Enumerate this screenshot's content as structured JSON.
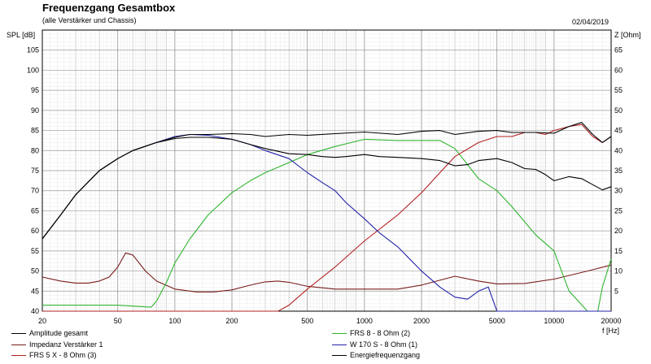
{
  "header": {
    "title": "Frequenzgang Gesamtbox",
    "subtitle": "(alle Verstärker und Chassis)",
    "date": "02/04/2019"
  },
  "chart_data": {
    "type": "line",
    "title": "Frequenzgang Gesamtbox",
    "subtitle": "(alle Verstärker und Chassis)",
    "xlabel": "f [Hz]",
    "ylabel": "SPL [dB]",
    "ylabel_right": "Z [Ohm]",
    "xscale": "log",
    "xlim": [
      20,
      20000
    ],
    "ylim": [
      40,
      110
    ],
    "ylim_right": [
      0,
      70
    ],
    "grid": true,
    "legend_position": "bottom",
    "x_ticks": [
      "20",
      "50",
      "100",
      "200",
      "500",
      "1000",
      "2000",
      "5000",
      "10000",
      "20000"
    ],
    "x_tick_values": [
      20,
      50,
      100,
      200,
      500,
      1000,
      2000,
      5000,
      10000,
      20000
    ],
    "y_ticks": [
      "40",
      "45",
      "50",
      "55",
      "60",
      "65",
      "70",
      "75",
      "80",
      "85",
      "90",
      "95",
      "100",
      "105"
    ],
    "y_tick_values": [
      40,
      45,
      50,
      55,
      60,
      65,
      70,
      75,
      80,
      85,
      90,
      95,
      100,
      105
    ],
    "y_ticks_right": [
      "5",
      "10",
      "15",
      "20",
      "25",
      "30",
      "35",
      "40",
      "45",
      "50",
      "55",
      "60",
      "65"
    ],
    "y_tick_values_right": [
      5,
      10,
      15,
      20,
      25,
      30,
      35,
      40,
      45,
      50,
      55,
      60,
      65
    ],
    "series": [
      {
        "name": "Amplitude gesamt",
        "color": "#000000",
        "axis": "left",
        "x": [
          20,
          25,
          30,
          40,
          50,
          60,
          80,
          100,
          120,
          150,
          200,
          250,
          300,
          400,
          500,
          700,
          1000,
          1500,
          2000,
          2500,
          3000,
          4000,
          5000,
          6000,
          8000,
          10000,
          12000,
          14000,
          16000,
          18000,
          20000
        ],
        "y": [
          58,
          64,
          69,
          75,
          78,
          80,
          82,
          83.3,
          84,
          84,
          84.2,
          84,
          83.5,
          84,
          83.8,
          84.2,
          84.6,
          84,
          84.8,
          85,
          84,
          84.8,
          85,
          84.5,
          84.5,
          84.3,
          86,
          87,
          84,
          82,
          83.5
        ]
      },
      {
        "name": "Impedanz Verstärker 1",
        "color": "#7a1c1c",
        "axis": "right",
        "x": [
          20,
          25,
          30,
          35,
          40,
          45,
          50,
          55,
          60,
          70,
          80,
          100,
          130,
          160,
          200,
          250,
          300,
          350,
          400,
          500,
          700,
          1000,
          1500,
          2000,
          2500,
          3000,
          4000,
          5000,
          7000,
          10000,
          15000,
          20000
        ],
        "y": [
          8.5,
          7.5,
          7,
          7,
          7.5,
          8.5,
          11,
          14.5,
          14,
          10,
          7.5,
          5.5,
          4.8,
          4.8,
          5.3,
          6.5,
          7.3,
          7.5,
          7.2,
          6.2,
          5.5,
          5.5,
          5.5,
          6.5,
          7.7,
          8.7,
          7.5,
          6.8,
          6.9,
          8,
          10,
          11.5
        ]
      },
      {
        "name": "FRS 8 - 8 Ohm (2)",
        "color": "#2fb52f",
        "axis": "left",
        "x": [
          20,
          50,
          75,
          80,
          90,
          100,
          120,
          150,
          200,
          250,
          300,
          400,
          500,
          700,
          1000,
          1500,
          2000,
          2500,
          3000,
          4000,
          5000,
          6000,
          8000,
          10000,
          12000,
          15000,
          17000,
          18000,
          20000
        ],
        "y": [
          41.5,
          41.5,
          41,
          42.5,
          47,
          52,
          58,
          64,
          69.5,
          72.5,
          74.5,
          77,
          79,
          81,
          82.8,
          82.5,
          82.5,
          82.5,
          80.5,
          73,
          70,
          66,
          59,
          55,
          45,
          40,
          40,
          46,
          53
        ]
      },
      {
        "name": "FRS 5 X - 8 Ohm (3)",
        "color": "#b22222",
        "axis": "left",
        "x": [
          20,
          100,
          200,
          350,
          400,
          500,
          700,
          1000,
          1500,
          2000,
          2500,
          3000,
          4000,
          5000,
          6000,
          7000,
          8000,
          9000,
          10000,
          12000,
          14000,
          16000,
          18000,
          20000
        ],
        "y": [
          40,
          40,
          40,
          40,
          41.5,
          45.5,
          51,
          57.5,
          64,
          69.5,
          74.5,
          78.5,
          82,
          83.5,
          83.5,
          84.5,
          84.5,
          84,
          85,
          86,
          86.5,
          83.5,
          82,
          83.5
        ]
      },
      {
        "name": "W 170 S - 8 Ohm (1)",
        "color": "#2222aa",
        "axis": "left",
        "x": [
          20,
          25,
          30,
          40,
          50,
          60,
          80,
          100,
          120,
          150,
          200,
          250,
          300,
          400,
          500,
          600,
          700,
          800,
          1000,
          1200,
          1500,
          2000,
          2500,
          3000,
          3500,
          4000,
          4500,
          5000,
          5500,
          20000
        ],
        "y": [
          58,
          64,
          69,
          75,
          78,
          80,
          82,
          83.5,
          84,
          83.8,
          82.8,
          81.5,
          80,
          78,
          74.5,
          72,
          70,
          67,
          63,
          59.5,
          56,
          50,
          46,
          43.5,
          43,
          45,
          46,
          40,
          40,
          40
        ]
      },
      {
        "name": "Energiefrequenzgang",
        "color": "#000000",
        "axis": "left",
        "x": [
          20,
          25,
          30,
          40,
          50,
          60,
          80,
          100,
          120,
          150,
          200,
          250,
          300,
          400,
          500,
          600,
          700,
          800,
          1000,
          1200,
          1500,
          2000,
          2500,
          3000,
          3500,
          4000,
          5000,
          6000,
          7000,
          8000,
          9000,
          10000,
          12000,
          14000,
          16000,
          18000,
          20000
        ],
        "y": [
          58,
          64,
          69,
          75,
          78,
          80,
          82,
          83,
          83.3,
          83.3,
          82.8,
          81.5,
          80.5,
          79.2,
          79,
          78.5,
          78.3,
          78.5,
          79,
          78.5,
          78.3,
          78,
          77.5,
          76.2,
          76.5,
          77.5,
          78,
          77,
          75.5,
          75.3,
          74,
          72.5,
          73.5,
          73,
          71.5,
          70.2,
          71
        ]
      }
    ],
    "legend": [
      {
        "label": "Amplitude gesamt",
        "color": "#000000"
      },
      {
        "label": "FRS 8 - 8 Ohm (2)",
        "color": "#2fb52f"
      },
      {
        "label": "Impedanz Verstärker 1",
        "color": "#7a1c1c"
      },
      {
        "label": "W 170 S - 8 Ohm (1)",
        "color": "#2222aa"
      },
      {
        "label": "FRS 5 X - 8 Ohm (3)",
        "color": "#b22222"
      },
      {
        "label": "Energiefrequenzgang",
        "color": "#000000"
      }
    ]
  }
}
